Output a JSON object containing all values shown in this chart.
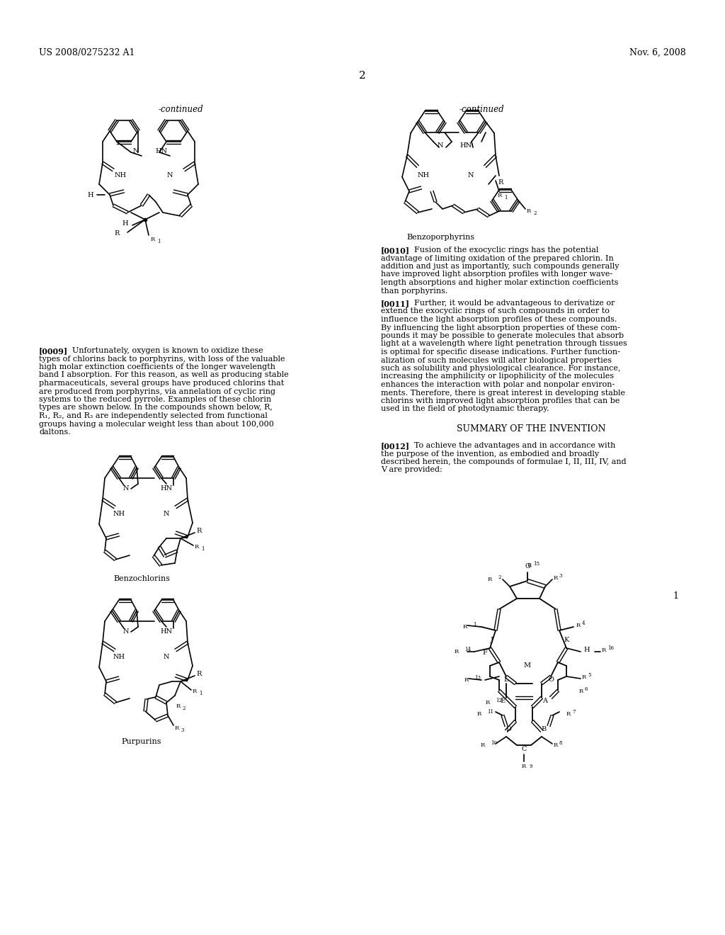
{
  "page_header_left": "US 2008/0275232 A1",
  "page_header_right": "Nov. 6, 2008",
  "page_number": "2",
  "continued_left": "-continued",
  "continued_right": "-continued",
  "label_benzoporphyrins": "Benzoporphyrins",
  "label_benzochlorins": "Benzochlorins",
  "label_purpurins": "Purpurins",
  "para_0009_title": "[0009]",
  "para_0009_text": "Unfortunately, oxygen is known to oxidize these types of chlorins back to porphyrins, with loss of the valuable high molar extinction coefficients of the longer wavelength band I absorption. For this reason, as well as producing stable pharmaceuticals, several groups have produced chlorins that are produced from porphyrins, via annelation of cyclic ring systems to the reduced pyrrole. Examples of these chlorin types are shown below. In the compounds shown below, R, R₁, R₂, and R₃ are independently selected from functional groups having a molecular weight less than about 100,000 daltons.",
  "para_0010_title": "[0010]",
  "para_0010_text": "Fusion of the exocyclic rings has the potential advantage of limiting oxidation of the prepared chlorin. In addition and just as importantly, such compounds generally have improved light absorption profiles with longer wave-length absorptions and higher molar extinction coefficients than porphyrins.",
  "para_0011_title": "[0011]",
  "para_0011_text": "Further, it would be advantageous to derivatize or extend the exocyclic rings of such compounds in order to influence the light absorption profiles of these compounds. By influencing the light absorption properties of these com-pounds it may be possible to generate molecules that absorb light at a wavelength where light penetration through tissues is optimal for specific disease indications. Further function-alization of such molecules will alter biological properties such as solubility and physiological clearance. For instance, increasing the amphilicity or lipophilicity of the molecules enhances the interaction with polar and nonpolar environ-ments. Therefore, there is great interest in developing stable chlorins with improved light absorption profiles that can be used in the field of photodynamic therapy.",
  "summary_title": "SUMMARY OF THE INVENTION",
  "para_0012_title": "[0012]",
  "para_0012_text": "To achieve the advantages and in accordance with the purpose of the invention, as embodied and broadly described herein, the compounds of formulae I, II, III, IV, and V are provided:",
  "figure_label_1": "1",
  "bg_color": "#ffffff",
  "text_color": "#000000",
  "font_size_body": 8.5,
  "font_size_header": 9,
  "font_size_label": 8
}
